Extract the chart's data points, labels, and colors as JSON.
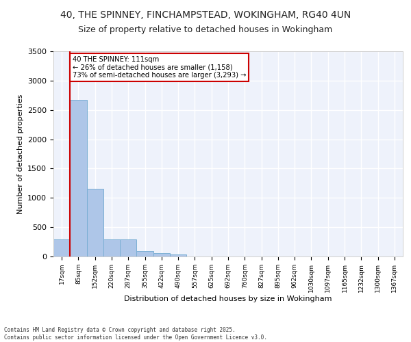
{
  "title_line1": "40, THE SPINNEY, FINCHAMPSTEAD, WOKINGHAM, RG40 4UN",
  "title_line2": "Size of property relative to detached houses in Wokingham",
  "xlabel": "Distribution of detached houses by size in Wokingham",
  "ylabel": "Number of detached properties",
  "bin_labels": [
    "17sqm",
    "85sqm",
    "152sqm",
    "220sqm",
    "287sqm",
    "355sqm",
    "422sqm",
    "490sqm",
    "557sqm",
    "625sqm",
    "692sqm",
    "760sqm",
    "827sqm",
    "895sqm",
    "962sqm",
    "1030sqm",
    "1097sqm",
    "1165sqm",
    "1232sqm",
    "1300sqm",
    "1367sqm"
  ],
  "bar_heights": [
    290,
    2670,
    1160,
    290,
    290,
    90,
    60,
    35,
    0,
    0,
    0,
    0,
    0,
    0,
    0,
    0,
    0,
    0,
    0,
    0,
    0
  ],
  "bar_color": "#aec6e8",
  "bar_edge_color": "#7bafd4",
  "background_color": "#eef2fb",
  "grid_color": "#ffffff",
  "red_line_bin": 1,
  "annotation_text": "40 THE SPINNEY: 111sqm\n← 26% of detached houses are smaller (1,158)\n73% of semi-detached houses are larger (3,293) →",
  "annotation_box_color": "#ffffff",
  "annotation_box_edge": "#cc0000",
  "red_line_color": "#cc0000",
  "ylim": [
    0,
    3500
  ],
  "yticks": [
    0,
    500,
    1000,
    1500,
    2000,
    2500,
    3000,
    3500
  ],
  "footer_line1": "Contains HM Land Registry data © Crown copyright and database right 2025.",
  "footer_line2": "Contains public sector information licensed under the Open Government Licence v3.0."
}
